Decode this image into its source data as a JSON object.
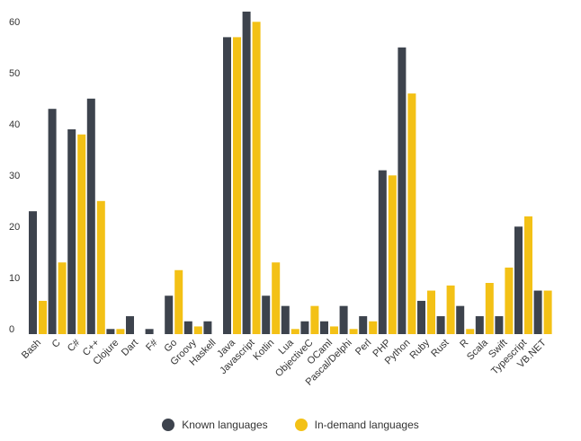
{
  "chart_data": {
    "type": "bar",
    "title": "",
    "xlabel": "",
    "ylabel": "",
    "ylim": [
      0,
      63
    ],
    "yticks": [
      0,
      10,
      20,
      30,
      40,
      50,
      60
    ],
    "categories": [
      "Bash",
      "C",
      "C#",
      "C++",
      "Clojure",
      "Dart",
      "F#",
      "Go",
      "Groovy",
      "Haskell",
      "Java",
      "Javascript",
      "Kotlin",
      "Lua",
      "ObjectiveC",
      "OCaml",
      "Pascal/Delphi",
      "Perl",
      "PHP",
      "Python",
      "Ruby",
      "Rust",
      "R",
      "Scala",
      "Swift",
      "Typescript",
      "VB.NET"
    ],
    "series": [
      {
        "name": "Known languages",
        "color": "#3d434d",
        "values": [
          24,
          44,
          40,
          46,
          1,
          3.5,
          1,
          7.5,
          2.5,
          2.5,
          58,
          63,
          7.5,
          5.5,
          2.5,
          2.5,
          5.5,
          3.5,
          32,
          56,
          6.5,
          3.5,
          5.5,
          3.5,
          3.5,
          21,
          8.5
        ]
      },
      {
        "name": "In-demand languages",
        "color": "#f3c116",
        "values": [
          6.5,
          14,
          39,
          26,
          1,
          0,
          0,
          12.5,
          1.5,
          0,
          58,
          61,
          14,
          1,
          5.5,
          1.5,
          1,
          2.5,
          31,
          47,
          8.5,
          9.5,
          1,
          10,
          13,
          23,
          8.5
        ]
      }
    ],
    "legend_position": "bottom-center"
  }
}
